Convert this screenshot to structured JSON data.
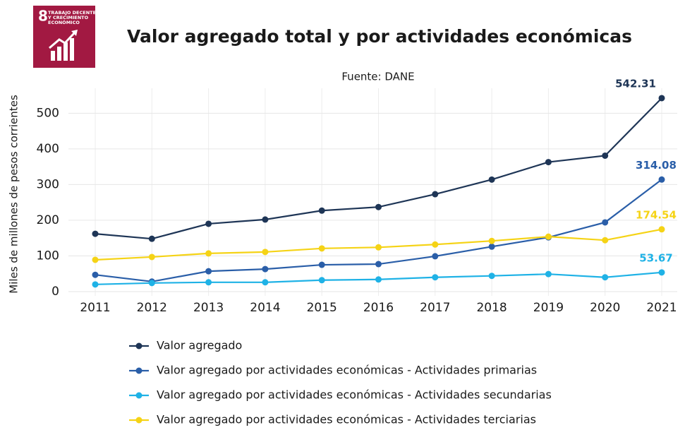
{
  "logo": {
    "number": "8",
    "text": [
      "TRABAJO DECENTE",
      "Y CRECIMIENTO",
      "ECONÓMICO"
    ]
  },
  "chart_data": {
    "type": "line",
    "title": "Valor agregado total y por actividades económicas",
    "subtitle": "Fuente: DANE",
    "y_label": "Miles de millones de pesos corrientes",
    "categories": [
      "2011",
      "2012",
      "2013",
      "2014",
      "2015",
      "2016",
      "2017",
      "2018",
      "2019",
      "2020",
      "2021"
    ],
    "ylim": [
      -12,
      570
    ],
    "yticks": [
      0,
      100,
      200,
      300,
      400,
      500
    ],
    "grid": true,
    "series": [
      {
        "name": "Valor agregado",
        "color": "#1e3556",
        "values": [
          162,
          148,
          190,
          202,
          227,
          237,
          273,
          314,
          363,
          381,
          542.31
        ]
      },
      {
        "name": "Valor agregado por actividades económicas - Actividades primarias",
        "color": "#2a5ea8",
        "values": [
          47,
          28,
          57,
          63,
          75,
          77,
          99,
          126,
          152,
          194,
          314.08
        ]
      },
      {
        "name": "Valor agregado por actividades económicas - Actividades secundarias",
        "color": "#1fb2e6",
        "values": [
          20,
          24,
          26,
          26,
          32,
          34,
          40,
          44,
          49,
          40,
          53.67
        ]
      },
      {
        "name": "Valor agregado por actividades económicas - Actividades terciarias",
        "color": "#f5d316",
        "values": [
          89,
          97,
          107,
          111,
          121,
          124,
          132,
          142,
          154,
          144,
          174.54
        ]
      }
    ]
  }
}
